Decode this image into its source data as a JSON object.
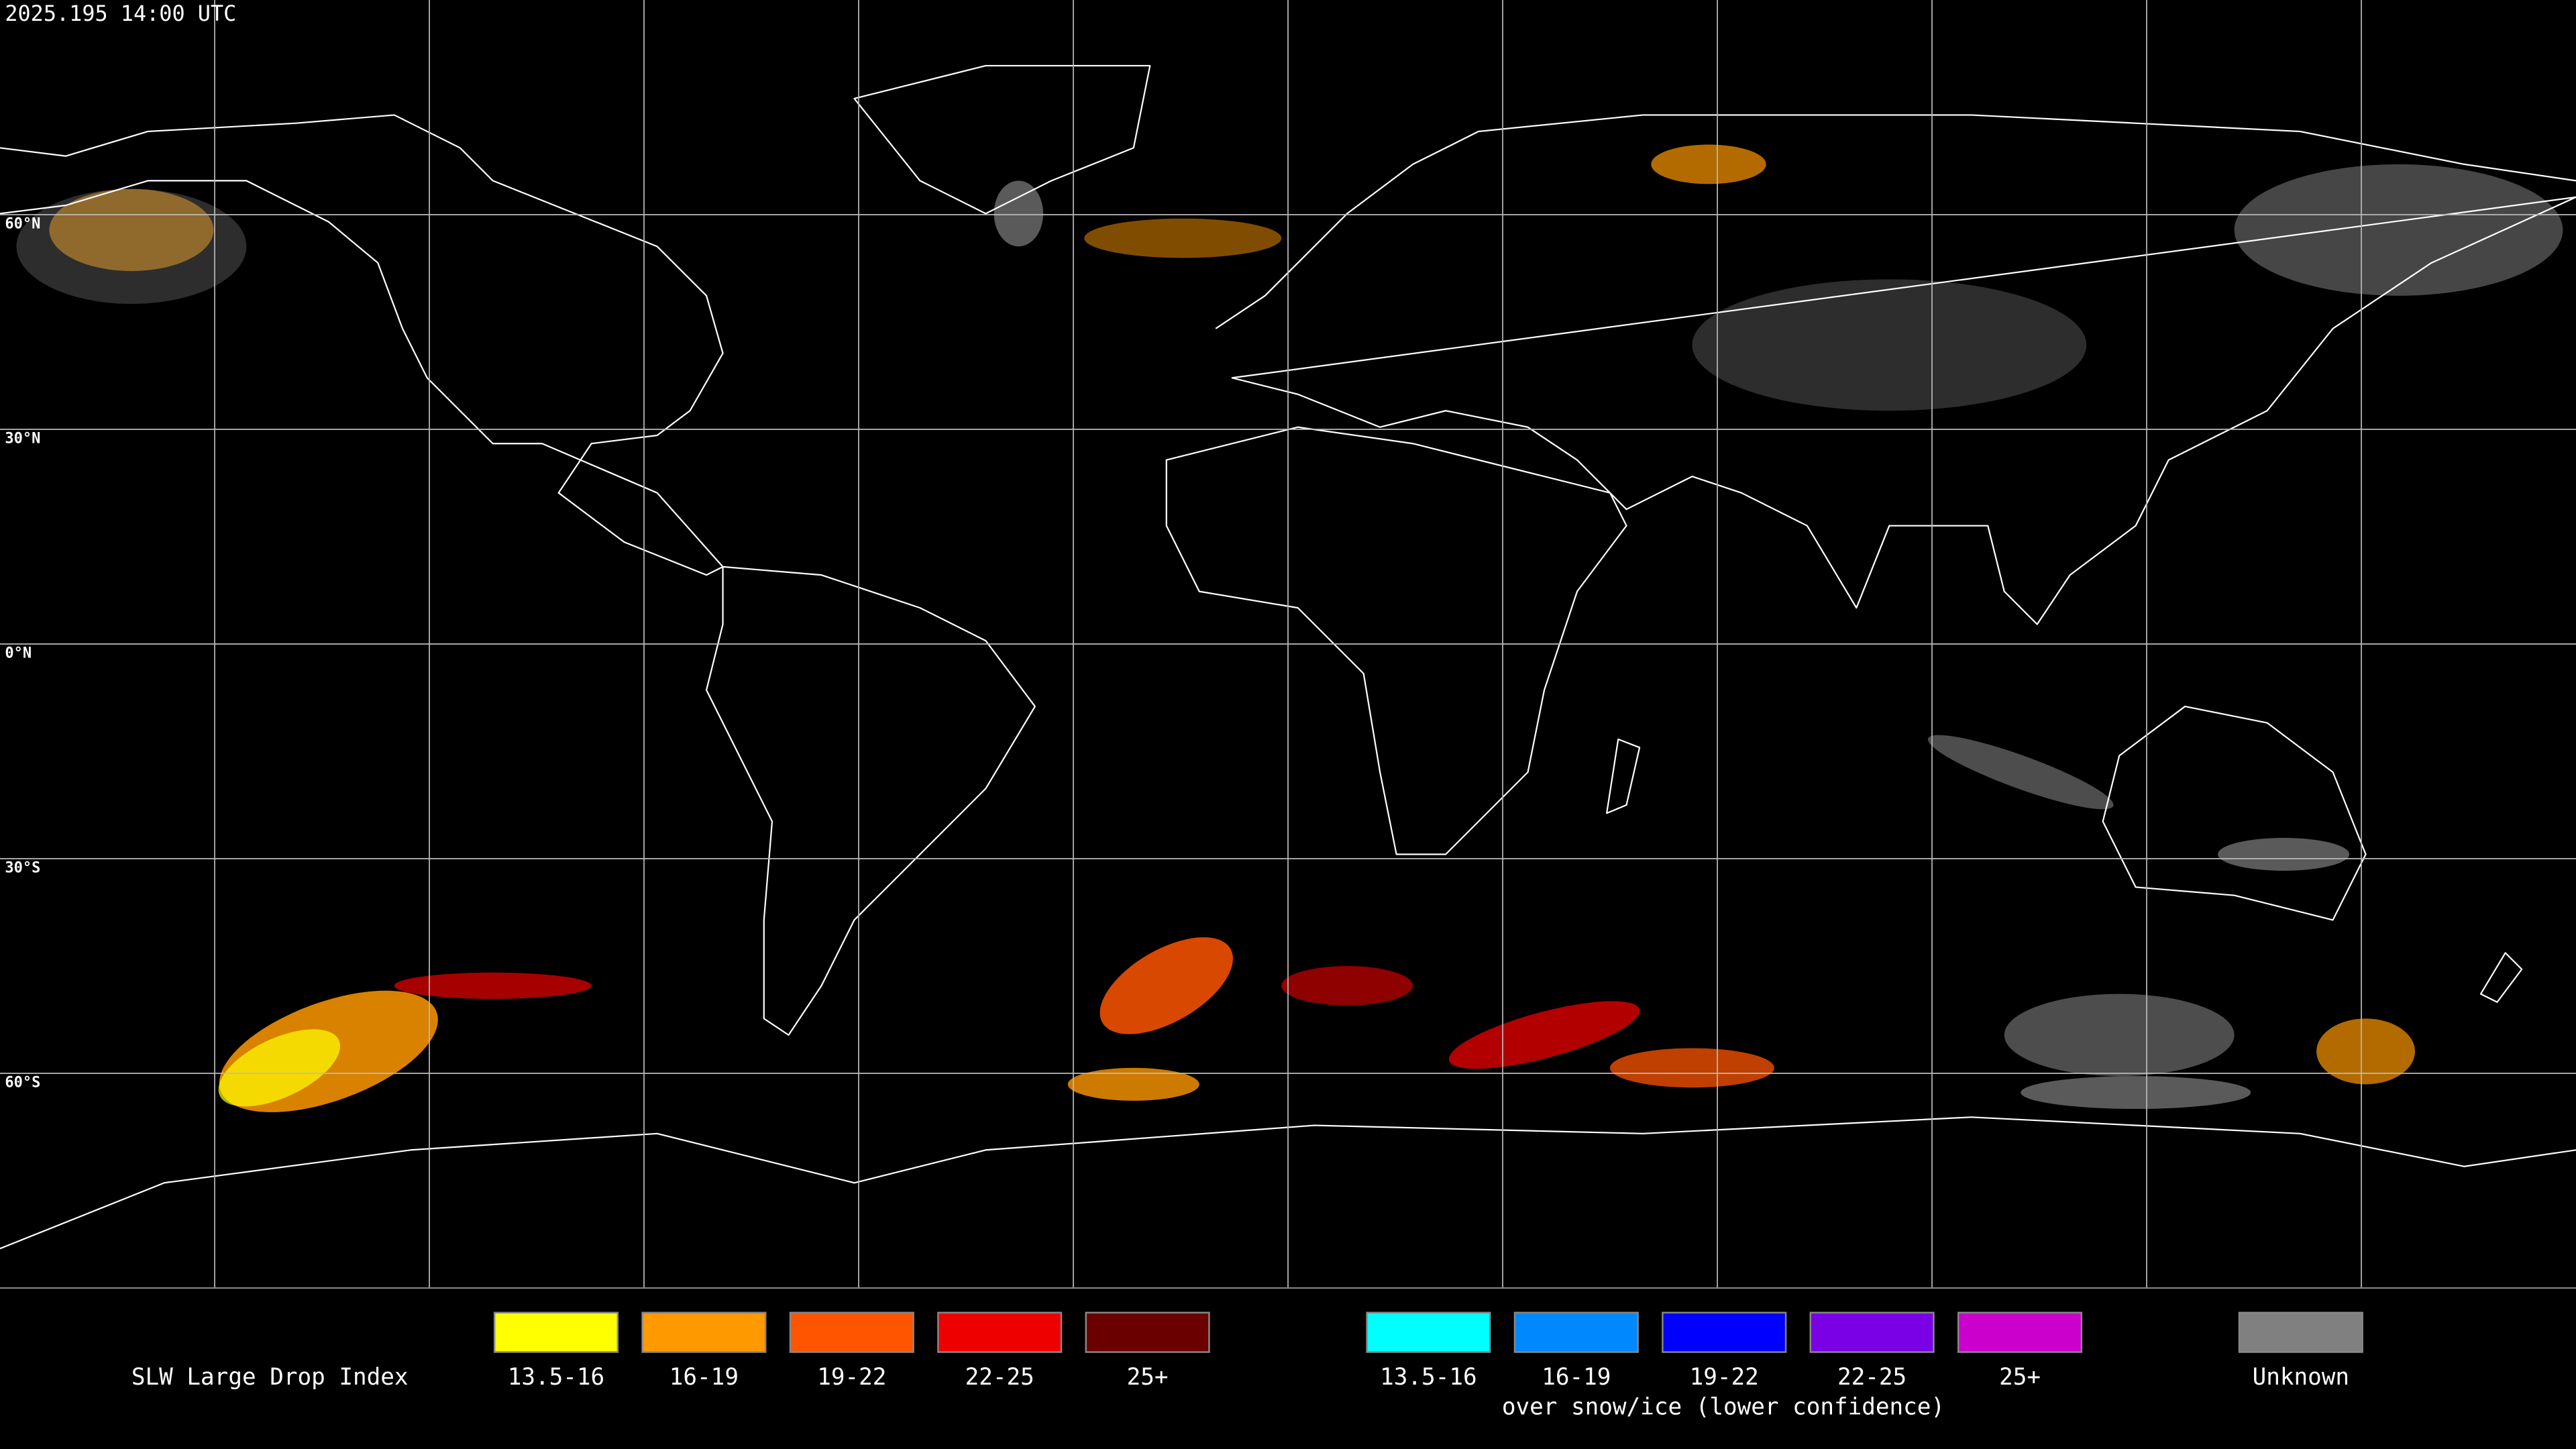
{
  "header": {
    "timestamp": "2025.195 14:00 UTC"
  },
  "map": {
    "latitude_labels": [
      "60°N",
      "30°N",
      "0°N",
      "30°S",
      "60°S"
    ]
  },
  "legend": {
    "title": "SLW Large Drop Index",
    "groups": [
      {
        "items": [
          {
            "label": "13.5-16",
            "color": "#ffff00"
          },
          {
            "label": "16-19",
            "color": "#ff9900"
          },
          {
            "label": "19-22",
            "color": "#ff5500"
          },
          {
            "label": "22-25",
            "color": "#ee0000"
          },
          {
            "label": "25+",
            "color": "#6b0000"
          }
        ]
      },
      {
        "note": "over snow/ice (lower confidence)",
        "items": [
          {
            "label": "13.5-16",
            "color": "#00ffff"
          },
          {
            "label": "16-19",
            "color": "#0088ff"
          },
          {
            "label": "19-22",
            "color": "#0000ff"
          },
          {
            "label": "22-25",
            "color": "#7a00e6"
          },
          {
            "label": "25+",
            "color": "#cc00cc"
          }
        ]
      }
    ],
    "unknown": {
      "label": "Unknown",
      "color": "#808080"
    }
  }
}
